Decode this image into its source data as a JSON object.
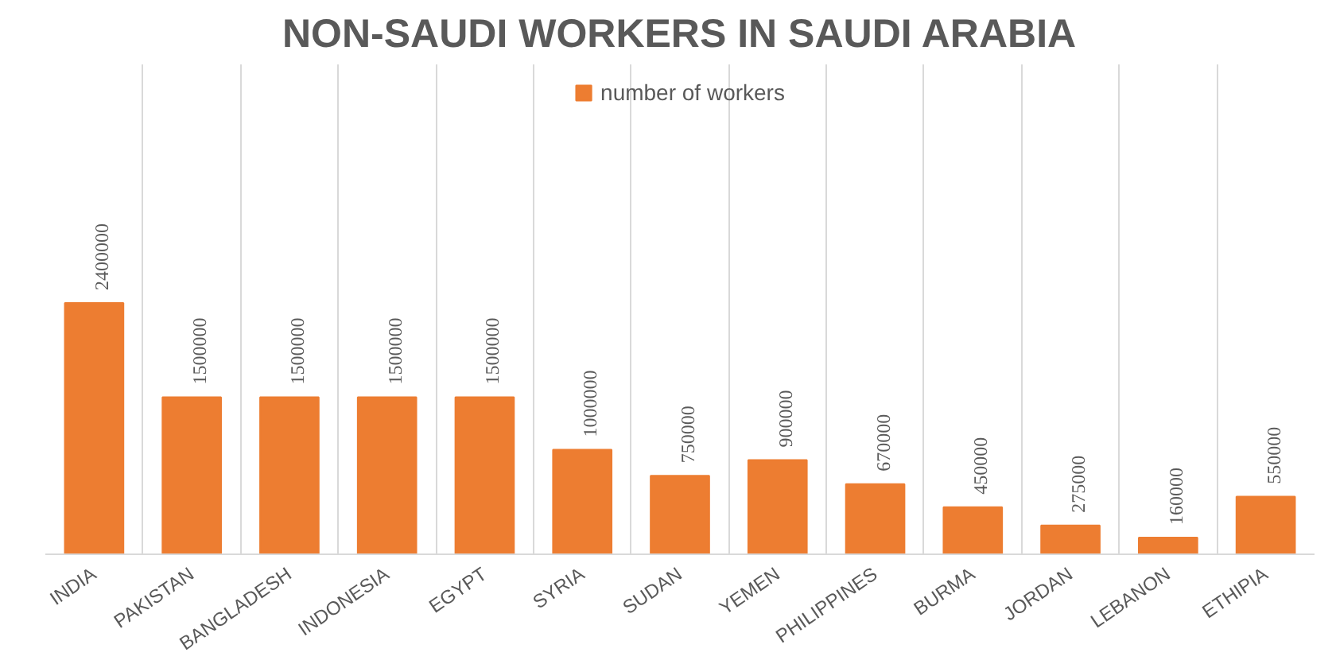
{
  "chart_data": {
    "type": "bar",
    "title": "NON-SAUDI WORKERS IN SAUDI ARABIA",
    "categories": [
      "INDIA",
      "PAKISTAN",
      "BANGLADESH",
      "INDONESIA",
      "EGYPT",
      "SYRIA",
      "SUDAN",
      "YEMEN",
      "PHILIPPINES",
      "BURMA",
      "JORDAN",
      "LEBANON",
      "ETHIPIA"
    ],
    "series": [
      {
        "name": "number of workers",
        "color": "#ed7d31",
        "values": [
          2400000,
          1500000,
          1500000,
          1500000,
          1500000,
          1000000,
          750000,
          900000,
          670000,
          450000,
          275000,
          160000,
          550000
        ]
      }
    ],
    "data_labels": true,
    "grid": "x",
    "legend": "top"
  }
}
